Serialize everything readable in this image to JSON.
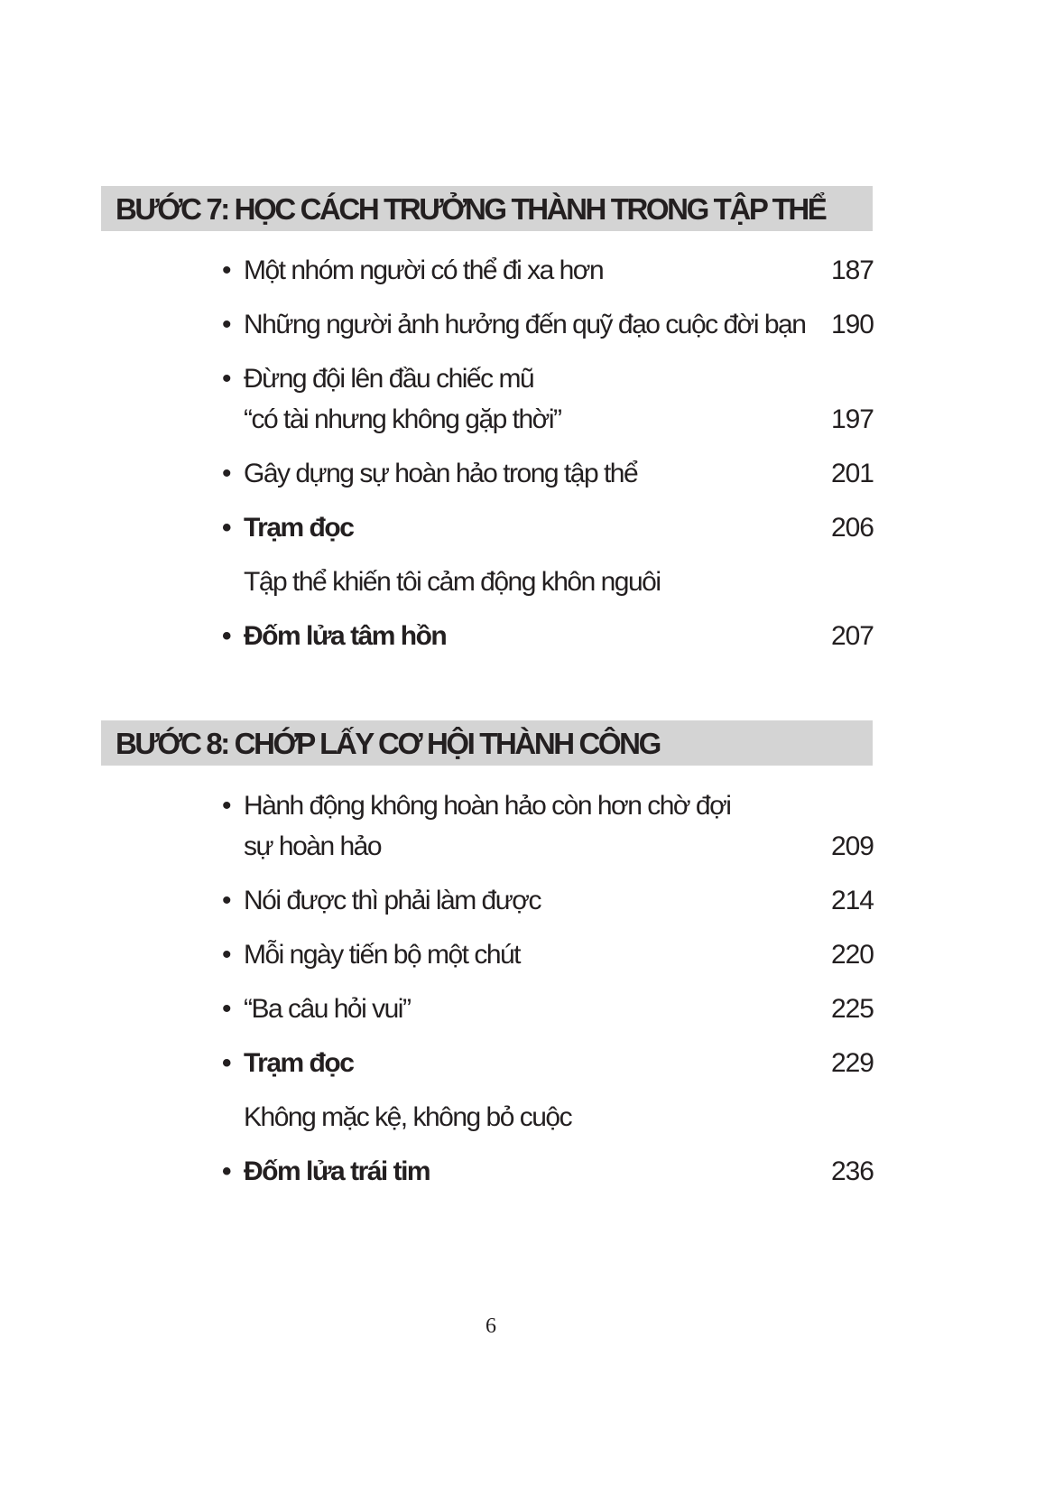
{
  "sections": [
    {
      "heading": "BƯỚC 7: HỌC CÁCH TRƯỞNG THÀNH TRONG TẬP THỂ",
      "items": [
        {
          "lines": [
            "Một nhóm người có thể đi xa hơn"
          ],
          "page": "187",
          "bullet": true,
          "bold": false
        },
        {
          "lines": [
            "Những người ảnh hưởng đến quỹ đạo cuộc đời bạn"
          ],
          "page": "190",
          "bullet": true,
          "bold": false
        },
        {
          "lines": [
            "Đừng đội lên đầu chiếc mũ",
            "“có tài nhưng không gặp thời”"
          ],
          "page": "197",
          "bullet": true,
          "bold": false
        },
        {
          "lines": [
            "Gây dựng sự hoàn hảo trong tập thể"
          ],
          "page": "201",
          "bullet": true,
          "bold": false
        },
        {
          "lines": [
            "Trạm đọc"
          ],
          "page": "206",
          "bullet": true,
          "bold": true
        },
        {
          "lines": [
            "Tập thể khiến tôi cảm động khôn nguôi"
          ],
          "page": "",
          "bullet": false,
          "bold": false
        },
        {
          "lines": [
            "Đốm lửa tâm hồn"
          ],
          "page": "207",
          "bullet": true,
          "bold": true
        }
      ]
    },
    {
      "heading": "BƯỚC 8: CHỚP LẤY CƠ HỘI THÀNH CÔNG",
      "items": [
        {
          "lines": [
            "Hành động không hoàn hảo còn hơn chờ đợi",
            "sự hoàn hảo"
          ],
          "page": "209",
          "bullet": true,
          "bold": false
        },
        {
          "lines": [
            "Nói được thì phải làm được"
          ],
          "page": "214",
          "bullet": true,
          "bold": false
        },
        {
          "lines": [
            "Mỗi ngày tiến bộ một chút"
          ],
          "page": "220",
          "bullet": true,
          "bold": false
        },
        {
          "lines": [
            "“Ba câu hỏi vui”"
          ],
          "page": "225",
          "bullet": true,
          "bold": false
        },
        {
          "lines": [
            "Trạm đọc"
          ],
          "page": "229",
          "bullet": true,
          "bold": true
        },
        {
          "lines": [
            "Không mặc kệ, không bỏ cuộc"
          ],
          "page": "",
          "bullet": false,
          "bold": false
        },
        {
          "lines": [
            "Đốm lửa trái tim"
          ],
          "page": "236",
          "bullet": true,
          "bold": true
        }
      ]
    }
  ],
  "bullet_glyph": "•",
  "heading_bg": "#d4d4d4",
  "page_number": "6"
}
